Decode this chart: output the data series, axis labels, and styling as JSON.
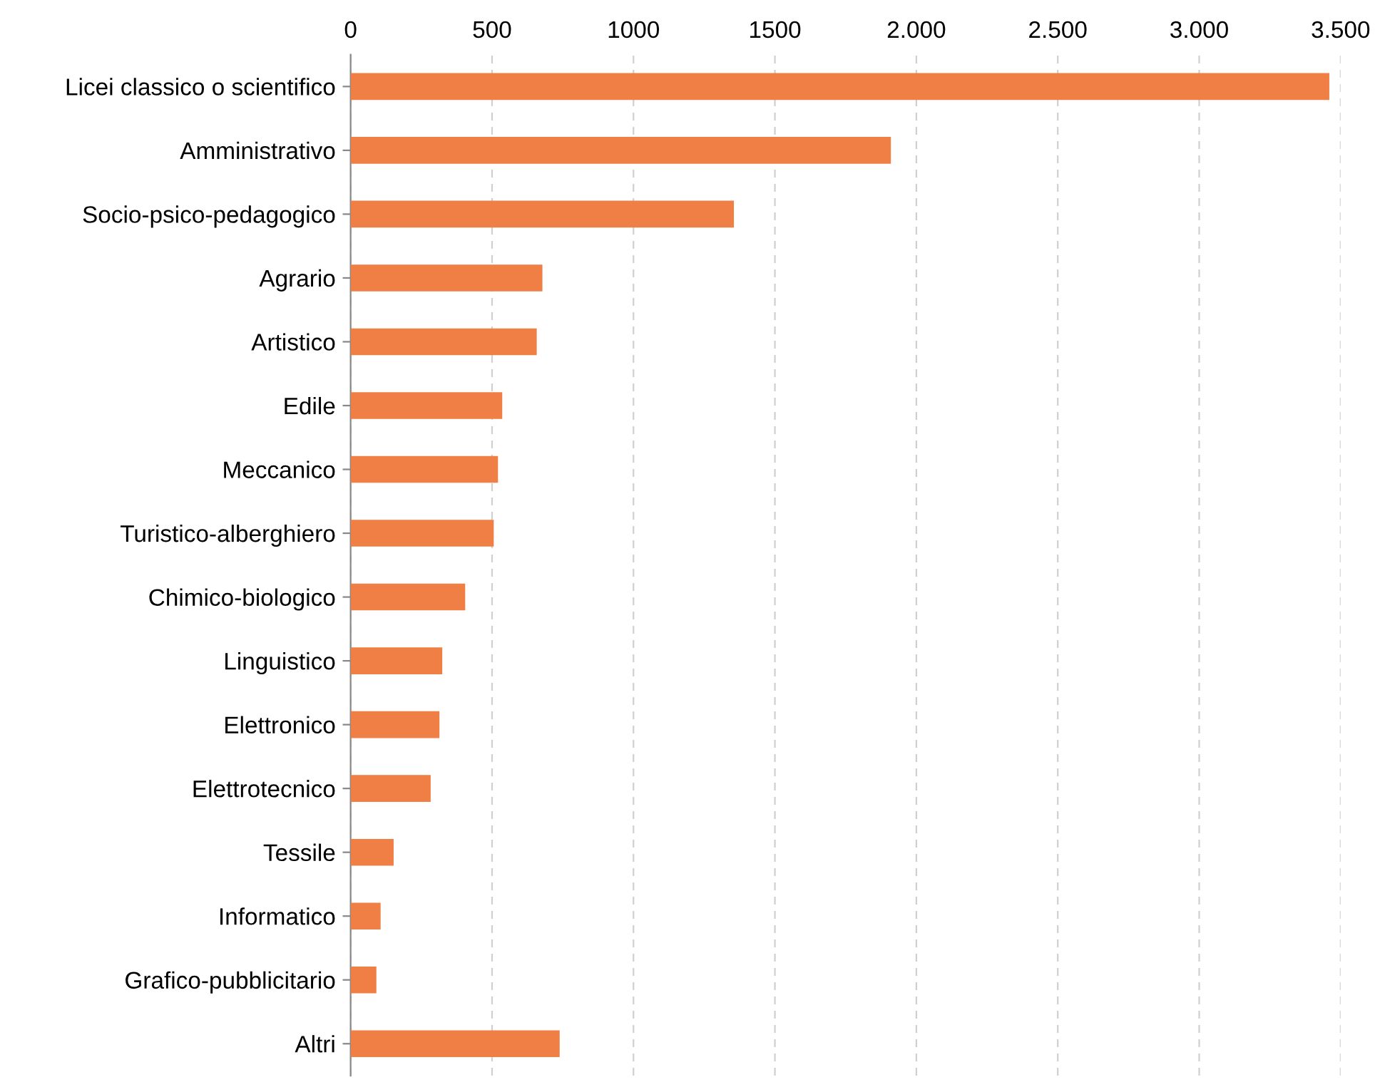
{
  "chart_data": {
    "type": "bar",
    "orientation": "horizontal",
    "categories": [
      "Licei classico o scientifico",
      "Amministrativo",
      "Socio-psico-pedagogico",
      "Agrario",
      "Artistico",
      "Edile",
      "Meccanico",
      "Turistico-alberghiero",
      "Chimico-biologico",
      "Linguistico",
      "Elettronico",
      "Elettrotecnico",
      "Tessile",
      "Informatico",
      "Grafico-pubblicitario",
      "Altri"
    ],
    "values": [
      3460,
      1910,
      1355,
      678,
      658,
      536,
      521,
      506,
      405,
      324,
      314,
      283,
      152,
      106,
      91,
      739
    ],
    "color": "#ef7f45",
    "xlim": [
      0,
      3500
    ],
    "xticks": [
      0,
      500,
      1000,
      1500,
      {
        "value": 2000,
        "label": "2.000"
      },
      {
        "value": 2500,
        "label": "2.500"
      },
      {
        "value": 3000,
        "label": "3.000"
      },
      {
        "value": 3500,
        "label": "3.500"
      }
    ],
    "grid": "x"
  }
}
